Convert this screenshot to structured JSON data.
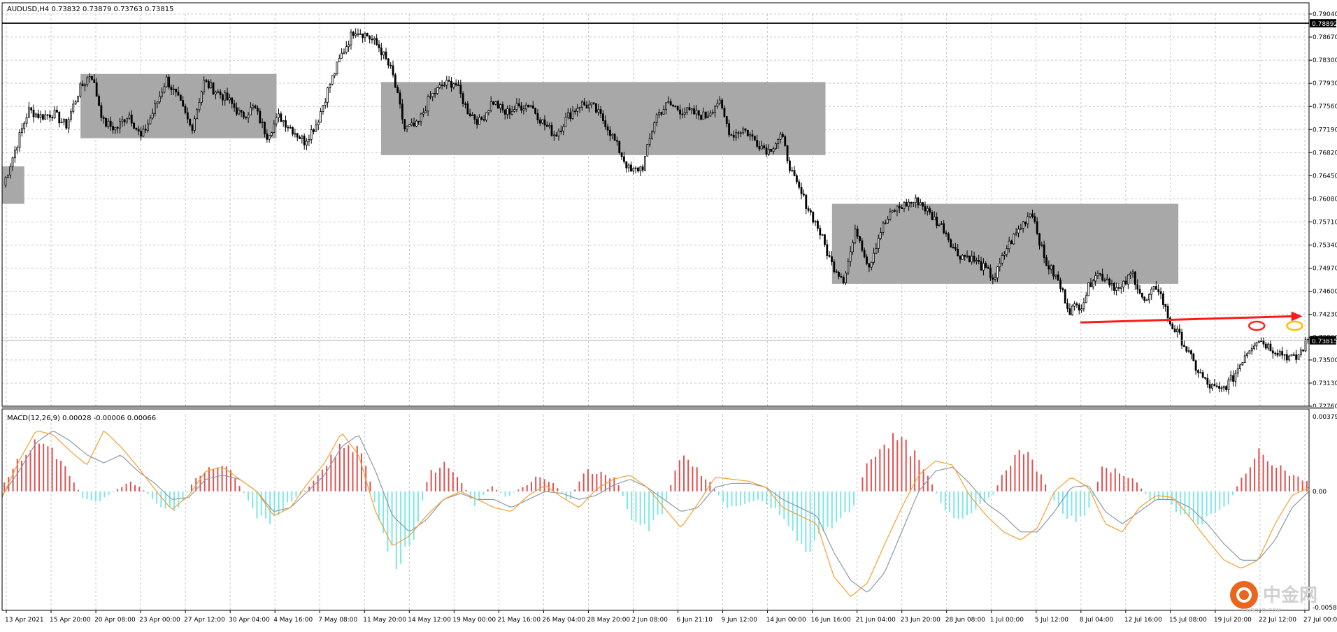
{
  "window": {
    "symbol_info": "AUDUSD,H4  0.73832 0.73879 0.73763 0.73815",
    "macd_info": "MACD(12,26,9) 0.00028 -0.00006 0.00066"
  },
  "watermark": {
    "text": "中金网",
    "sub": "CNGOLD.COM"
  },
  "colors": {
    "background": "#ffffff",
    "grid": "#c8c8c8",
    "candle": "#000000",
    "zone": "#a8a8a8",
    "hist_pos": "#e05050",
    "hist_neg": "#7fe6e6",
    "macd_line": "#f5a030",
    "signal_line": "#8a9aa8",
    "arrow": "#ff1a1a",
    "circle_red": "#ff2020",
    "circle_yellow": "#ffbf00",
    "price_level": "#000000"
  },
  "chart_data": [
    {
      "type": "candlestick",
      "title": "AUDUSD,H4",
      "ylim": [
        0.7276,
        0.7904
      ],
      "y_ticks": [
        "0.79040",
        "0.78670",
        "0.78300",
        "0.77930",
        "0.77560",
        "0.77190",
        "0.76820",
        "0.76450",
        "0.76080",
        "0.75710",
        "0.75340",
        "0.74970",
        "0.74600",
        "0.74230",
        "0.73860",
        "0.73500",
        "0.73130",
        "0.72760"
      ],
      "x_labels": [
        "13 Apr 2021",
        "15 Apr 20:00",
        "20 Apr 08:00",
        "23 Apr 00:00",
        "27 Apr 12:00",
        "30 Apr 04:00",
        "4 May 16:00",
        "7 May 08:00",
        "11 May 20:00",
        "14 May 12:00",
        "19 May 00:00",
        "21 May 16:00",
        "26 May 04:00",
        "28 May 20:00",
        "2 Jun 08:00",
        "6 Jun 21:10",
        "9 Jun 12:00",
        "14 Jun 00:00",
        "16 Jun 16:00",
        "21 Jun 04:00",
        "23 Jun 20:00",
        "28 Jun 08:00",
        "1 Jul 00:00",
        "5 Jul 12:00",
        "8 Jul 04:00",
        "12 Jul 16:00",
        "15 Jul 08:00",
        "19 Jul 20:00",
        "22 Jul 12:00",
        "27 Jul 00:00"
      ],
      "price_levels": [
        {
          "value": 0.78892,
          "label": "0.78892"
        },
        {
          "value": 0.73815,
          "label": "0.73815"
        }
      ],
      "close_path": [
        0.763,
        0.769,
        0.775,
        0.774,
        0.7745,
        0.7725,
        0.778,
        0.781,
        0.773,
        0.772,
        0.7745,
        0.7705,
        0.775,
        0.78,
        0.7765,
        0.772,
        0.7795,
        0.778,
        0.7765,
        0.774,
        0.7755,
        0.771,
        0.774,
        0.772,
        0.77,
        0.773,
        0.779,
        0.784,
        0.788,
        0.787,
        0.785,
        0.781,
        0.772,
        0.7725,
        0.777,
        0.779,
        0.7795,
        0.775,
        0.773,
        0.7765,
        0.7745,
        0.7755,
        0.776,
        0.773,
        0.771,
        0.774,
        0.776,
        0.7755,
        0.773,
        0.769,
        0.765,
        0.766,
        0.774,
        0.776,
        0.775,
        0.7745,
        0.774,
        0.7765,
        0.771,
        0.772,
        0.77,
        0.7685,
        0.771,
        0.764,
        0.76,
        0.756,
        0.7505,
        0.748,
        0.756,
        0.75,
        0.756,
        0.759,
        0.76,
        0.7605,
        0.758,
        0.756,
        0.752,
        0.7515,
        0.75,
        0.748,
        0.753,
        0.756,
        0.759,
        0.751,
        0.748,
        0.743,
        0.744,
        0.749,
        0.748,
        0.746,
        0.749,
        0.744,
        0.747,
        0.741,
        0.738,
        0.734,
        0.731,
        0.73,
        0.732,
        0.736,
        0.7385,
        0.737,
        0.736,
        0.735,
        0.7382
      ],
      "macd_ylim": [
        -0.00587,
        0.00379
      ],
      "macd_ticks": [
        "0.00379",
        "0.00",
        "-0.00587"
      ],
      "macd_hist_path": [
        0.0005,
        0.0016,
        0.0024,
        0.0022,
        0.001,
        -0.0003,
        -0.0005,
        0.0,
        0.0005,
        0.0,
        -0.0008,
        -0.001,
        0.0004,
        0.0012,
        0.0014,
        0.0003,
        -0.0012,
        -0.0016,
        -0.0006,
        -0.0001,
        0.0008,
        0.0019,
        0.0024,
        0.0016,
        -0.002,
        -0.0034,
        -0.0028,
        0.0008,
        0.0014,
        0.0007,
        -0.0008,
        0.0003,
        -0.0003,
        0.0002,
        0.0007,
        0.0004,
        -0.0005,
        0.0011,
        0.0009,
        0.0006,
        -0.0014,
        -0.0019,
        -0.001,
        0.0017,
        0.0012,
        0.0004,
        -0.0008,
        -0.0006,
        -0.0004,
        -0.0008,
        -0.0016,
        -0.003,
        -0.0022,
        -0.0014,
        -0.001,
        0.0014,
        0.0024,
        0.0026,
        0.0018,
        0.0005,
        -0.001,
        -0.0016,
        -0.0008,
        -0.0002,
        0.0014,
        0.002,
        0.0009,
        -0.0006,
        -0.0014,
        -0.0012,
        0.0012,
        0.001,
        0.0006,
        -0.0004,
        -0.0004,
        -0.0012,
        -0.0016,
        -0.0011,
        -0.0006,
        0.0009,
        0.0019,
        0.0014,
        0.0008,
        0.0005
      ],
      "macd_line_path": [
        -0.0003,
        0.0015,
        0.003,
        0.0028,
        0.002,
        0.0013,
        0.003,
        0.0022,
        0.0012,
        0.0001,
        -0.0009,
        -0.0002,
        0.001,
        0.0012,
        0.0006,
        0.0,
        -0.0012,
        -0.0008,
        0.0004,
        0.0014,
        0.0029,
        0.0018,
        -0.001,
        -0.0027,
        -0.0022,
        -0.0012,
        -0.0004,
        0.0,
        -0.0004,
        -0.0008,
        -0.001,
        -0.0002,
        0.0003,
        -0.0003,
        -0.0008,
        0.0001,
        0.0006,
        0.0008,
        0.0002,
        -0.0008,
        -0.0018,
        -0.0006,
        0.0007,
        0.0006,
        0.0005,
        0.0002,
        -0.0008,
        -0.0012,
        -0.0016,
        -0.0042,
        -0.0052,
        -0.0045,
        -0.0026,
        -0.0008,
        0.0008,
        0.0015,
        0.0013,
        -0.0002,
        -0.0012,
        -0.002,
        -0.0024,
        -0.0018,
        0.0,
        0.0007,
        0.0002,
        -0.0016,
        -0.002,
        -0.0008,
        -0.0002,
        -0.0003,
        -0.0013,
        -0.0024,
        -0.0034,
        -0.0038,
        -0.0034,
        -0.0016,
        -0.0002,
        0.0002
      ],
      "signal_line_path": [
        -0.0002,
        0.001,
        0.0024,
        0.003,
        0.0025,
        0.0018,
        0.0014,
        0.0018,
        0.001,
        0.0004,
        -0.0004,
        -0.0003,
        0.0006,
        0.0008,
        0.0006,
        0.0,
        -0.001,
        -0.0008,
        0.0,
        0.0008,
        0.0022,
        0.0028,
        0.001,
        -0.0012,
        -0.002,
        -0.0014,
        -0.0004,
        -0.0001,
        -0.0004,
        -0.0004,
        -0.0008,
        -0.0004,
        0.0,
        -0.0001,
        -0.0004,
        -0.0002,
        0.0003,
        0.0006,
        0.0002,
        -0.0004,
        -0.001,
        -0.0008,
        0.0002,
        0.0004,
        0.0004,
        0.0002,
        -0.0004,
        -0.0008,
        -0.0012,
        -0.003,
        -0.0044,
        -0.005,
        -0.004,
        -0.002,
        0.0,
        0.001,
        0.0012,
        0.0004,
        -0.0006,
        -0.0012,
        -0.002,
        -0.002,
        -0.001,
        0.0002,
        0.0003,
        -0.001,
        -0.0016,
        -0.001,
        -0.0004,
        -0.0004,
        -0.0008,
        -0.0016,
        -0.0026,
        -0.0034,
        -0.0034,
        -0.0024,
        -0.0008,
        0.0
      ],
      "zones": [
        {
          "from": 0.0,
          "to": 0.017,
          "high": 0.766,
          "low": 0.76
        },
        {
          "from": 0.06,
          "to": 0.21,
          "high": 0.7808,
          "low": 0.7705
        },
        {
          "from": 0.29,
          "to": 0.63,
          "high": 0.7795,
          "low": 0.7678
        },
        {
          "from": 0.635,
          "to": 0.9,
          "high": 0.76,
          "low": 0.7472
        }
      ],
      "arrow": {
        "from": 0.825,
        "to": 0.995,
        "start_price": 0.741,
        "end_price": 0.742
      },
      "circles": [
        {
          "x": 0.96,
          "price": 0.7398,
          "color": "red"
        },
        {
          "x": 0.989,
          "price": 0.7398,
          "color": "yellow"
        }
      ]
    }
  ]
}
